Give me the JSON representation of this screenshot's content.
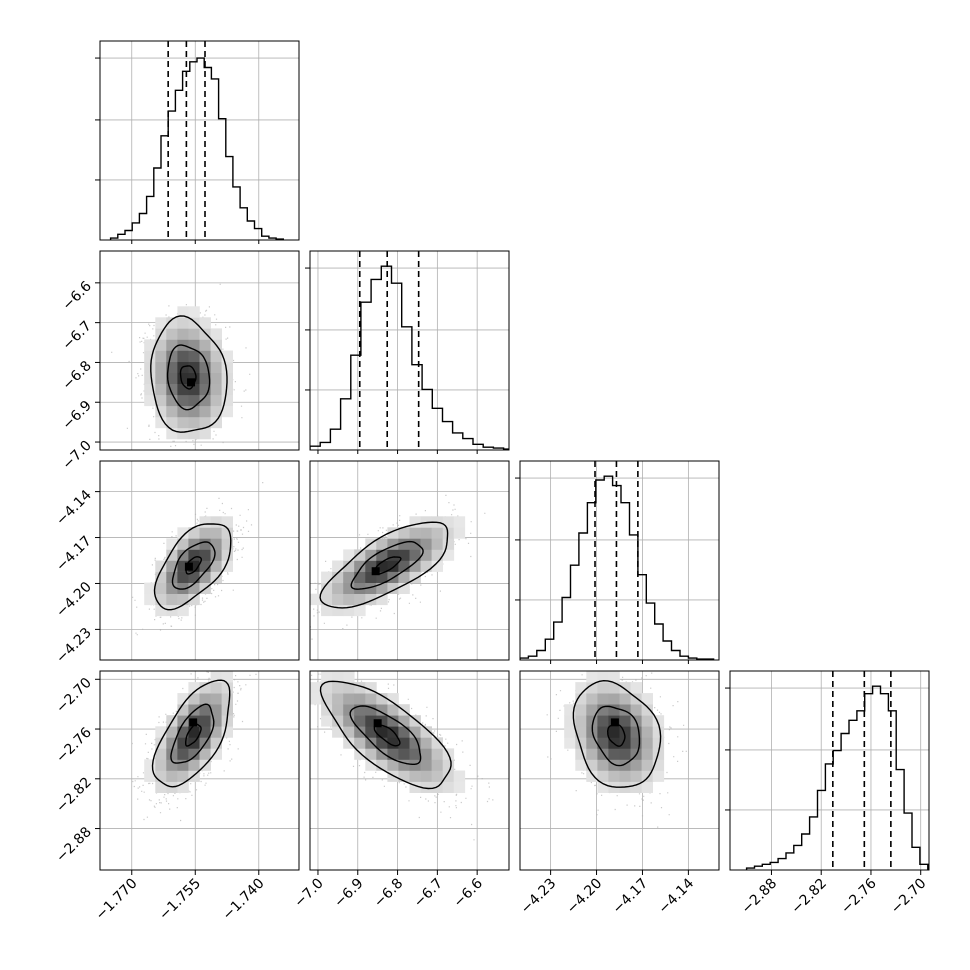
{
  "chart_data": {
    "type": "corner",
    "style": {
      "line_color": "#000000",
      "grid_color": "#b0b0b0",
      "scatter_color": "#b3b3b3",
      "background": "#ffffff"
    },
    "params": [
      {
        "range": [
          -1.7775,
          -1.7305
        ],
        "ticks": [
          -1.77,
          -1.755,
          -1.74
        ],
        "tick_labels": [
          "−1.770",
          "−1.755",
          "−1.740"
        ]
      },
      {
        "range": [
          -7.02,
          -6.52
        ],
        "ticks": [
          -7.0,
          -6.9,
          -6.8,
          -6.7,
          -6.6
        ],
        "tick_labels": [
          "−7.0",
          "−6.9",
          "−6.8",
          "−6.7",
          "−6.6"
        ]
      },
      {
        "range": [
          -4.25,
          -4.12
        ],
        "ticks": [
          -4.23,
          -4.2,
          -4.17,
          -4.14
        ],
        "tick_labels": [
          "−4.23",
          "−4.20",
          "−4.17",
          "−4.14"
        ]
      },
      {
        "range": [
          -2.93,
          -2.69
        ],
        "ticks": [
          -2.88,
          -2.82,
          -2.76,
          -2.7
        ],
        "tick_labels": [
          "−2.88",
          "−2.82",
          "−2.76",
          "−2.70"
        ]
      }
    ],
    "hist_ymax": [
      1.0,
      1.0,
      1.0,
      1.0
    ],
    "hist_yticks": [
      0.33,
      0.66,
      1.0
    ],
    "histograms": [
      {
        "bin_edges": [
          -1.775,
          -1.7733,
          -1.7716,
          -1.7699,
          -1.7682,
          -1.7665,
          -1.7648,
          -1.7631,
          -1.7614,
          -1.7597,
          -1.758,
          -1.7563,
          -1.7546,
          -1.7529,
          -1.7512,
          -1.7495,
          -1.7478,
          -1.7461,
          -1.7444,
          -1.7427,
          -1.741,
          -1.7393,
          -1.7376,
          -1.7359,
          -1.7342
        ],
        "counts": [
          0.01,
          0.03,
          0.05,
          0.09,
          0.14,
          0.23,
          0.38,
          0.55,
          0.68,
          0.79,
          0.89,
          0.94,
          0.96,
          0.91,
          0.85,
          0.64,
          0.44,
          0.28,
          0.17,
          0.1,
          0.06,
          0.02,
          0.01,
          0.005
        ],
        "quantiles": [
          -1.7614,
          -1.7571,
          -1.7527
        ]
      },
      {
        "bin_edges": [
          -7.02,
          -6.9944,
          -6.9688,
          -6.9432,
          -6.9176,
          -6.892,
          -6.8664,
          -6.8408,
          -6.8152,
          -6.7896,
          -6.764,
          -6.7384,
          -6.7128,
          -6.6872,
          -6.6616,
          -6.636,
          -6.6104,
          -6.5848,
          -6.5592,
          -6.5336,
          -6.52
        ],
        "counts": [
          0.02,
          0.04,
          0.11,
          0.27,
          0.5,
          0.78,
          0.9,
          0.97,
          0.88,
          0.65,
          0.45,
          0.32,
          0.22,
          0.15,
          0.09,
          0.06,
          0.03,
          0.015,
          0.01,
          0.005
        ],
        "quantiles": [
          -6.895,
          -6.826,
          -6.747
        ]
      },
      {
        "bin_edges": [
          -4.25,
          -4.2445,
          -4.239,
          -4.2335,
          -4.228,
          -4.2225,
          -4.217,
          -4.2115,
          -4.206,
          -4.2005,
          -4.195,
          -4.1895,
          -4.184,
          -4.1785,
          -4.173,
          -4.1675,
          -4.162,
          -4.1565,
          -4.151,
          -4.1455,
          -4.14,
          -4.1345,
          -4.129,
          -4.1235
        ],
        "counts": [
          0.01,
          0.02,
          0.05,
          0.11,
          0.2,
          0.33,
          0.5,
          0.67,
          0.83,
          0.95,
          0.97,
          0.92,
          0.83,
          0.66,
          0.45,
          0.3,
          0.19,
          0.1,
          0.05,
          0.02,
          0.01,
          0.005,
          0.005
        ],
        "quantiles": [
          -4.201,
          -4.187,
          -4.173
        ]
      },
      {
        "bin_edges": [
          -2.91,
          -2.9005,
          -2.891,
          -2.8815,
          -2.872,
          -2.8625,
          -2.853,
          -2.8435,
          -2.834,
          -2.8245,
          -2.815,
          -2.8055,
          -2.796,
          -2.7865,
          -2.777,
          -2.7675,
          -2.758,
          -2.7485,
          -2.739,
          -2.7295,
          -2.72,
          -2.7105,
          -2.701,
          -2.6915
        ],
        "counts": [
          0.01,
          0.02,
          0.03,
          0.04,
          0.06,
          0.09,
          0.13,
          0.19,
          0.28,
          0.42,
          0.56,
          0.63,
          0.72,
          0.79,
          0.84,
          0.93,
          0.97,
          0.93,
          0.84,
          0.53,
          0.3,
          0.12,
          0.03
        ],
        "quantiles": [
          -2.806,
          -2.768,
          -2.736
        ]
      }
    ],
    "pairs": [
      {
        "i": 1,
        "j": 0,
        "mean": [
          -1.7567,
          -6.836
        ],
        "sd": [
          0.0045,
          0.072
        ],
        "rho": -0.1,
        "levels": [
          0.4,
          1.1,
          2.0
        ],
        "peak": [
          -1.756,
          -6.85
        ]
      },
      {
        "i": 2,
        "j": 0,
        "mean": [
          -1.7555,
          -4.188
        ],
        "sd": [
          0.0045,
          0.014
        ],
        "rho": 0.58,
        "levels": [
          0.4,
          1.1,
          2.0
        ],
        "peak": [
          -1.7565,
          -4.189
        ]
      },
      {
        "i": 2,
        "j": 1,
        "mean": [
          -6.826,
          -4.188
        ],
        "sd": [
          0.08,
          0.014
        ],
        "rho": 0.72,
        "levels": [
          0.4,
          1.1,
          2.0
        ],
        "peak": [
          -6.855,
          -4.192
        ]
      },
      {
        "i": 3,
        "j": 0,
        "mean": [
          -1.7555,
          -2.767
        ],
        "sd": [
          0.0045,
          0.032
        ],
        "rho": 0.62,
        "levels": [
          0.4,
          1.1,
          2.0
        ],
        "peak": [
          -1.7555,
          -2.752
        ]
      },
      {
        "i": 3,
        "j": 1,
        "mean": [
          -6.826,
          -2.767
        ],
        "sd": [
          0.08,
          0.032
        ],
        "rho": -0.72,
        "levels": [
          0.4,
          1.1,
          2.0
        ],
        "peak": [
          -6.85,
          -2.753
        ]
      },
      {
        "i": 3,
        "j": 2,
        "mean": [
          -4.187,
          -2.767
        ],
        "sd": [
          0.014,
          0.032
        ],
        "rho": -0.22,
        "levels": [
          0.4,
          1.1,
          2.0
        ],
        "peak": [
          -4.188,
          -2.752
        ]
      }
    ]
  }
}
